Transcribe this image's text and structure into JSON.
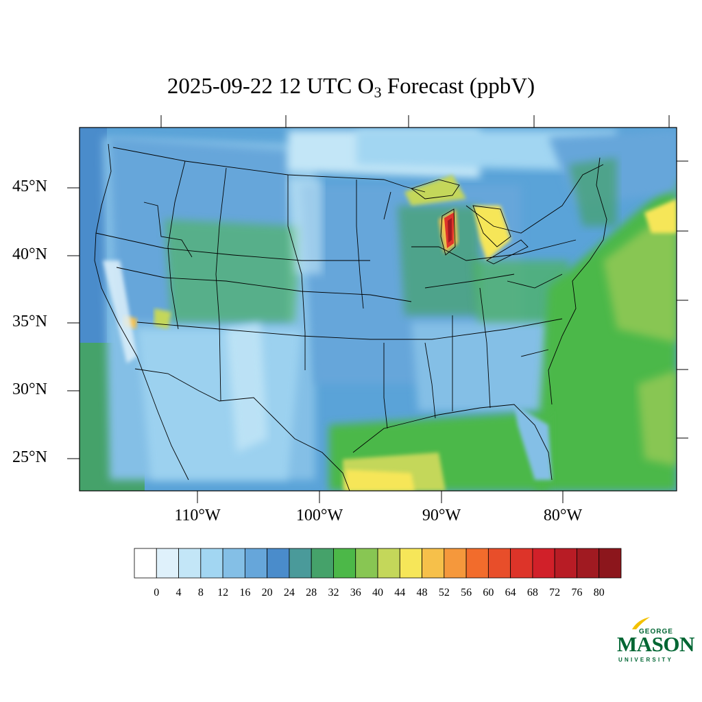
{
  "title": {
    "prefix": "2025-09-22 12 UTC O",
    "subscript": "3",
    "suffix": " Forecast (ppbV)"
  },
  "lat_labels": [
    "45°N",
    "40°N",
    "35°N",
    "30°N",
    "25°N"
  ],
  "lon_labels": [
    "110°W",
    "100°W",
    "90°W",
    "80°W"
  ],
  "colorbar": {
    "labels": [
      "0",
      "4",
      "8",
      "12",
      "16",
      "20",
      "24",
      "28",
      "32",
      "36",
      "40",
      "44",
      "48",
      "52",
      "56",
      "60",
      "64",
      "68",
      "72",
      "76",
      "80"
    ],
    "colors": [
      "#ffffff",
      "#dff1fb",
      "#c3e6f7",
      "#a2d6f2",
      "#84bfe6",
      "#66a6da",
      "#4a8ccb",
      "#4a9a9a",
      "#45a26a",
      "#4cb848",
      "#88c653",
      "#c4d75a",
      "#f6e659",
      "#f6c04a",
      "#f5983c",
      "#f26c2c",
      "#e84e2a",
      "#dd3429",
      "#d12029",
      "#b81c25",
      "#a01a21",
      "#8c161c"
    ]
  },
  "logo": {
    "line1": "GEORGE",
    "line2": "MASON",
    "line3": "UNIVERSITY"
  }
}
